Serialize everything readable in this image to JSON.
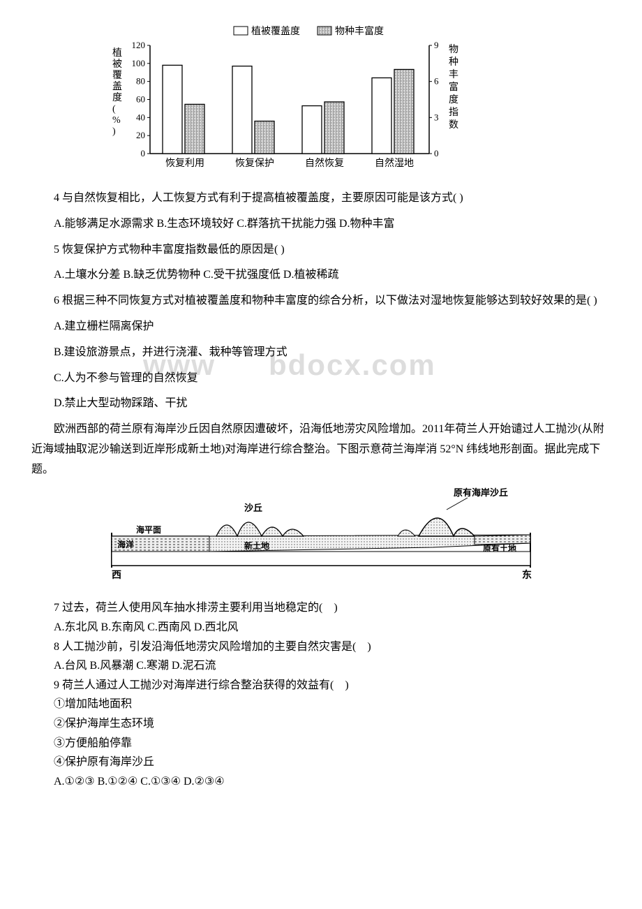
{
  "chart": {
    "type": "bar",
    "legend": [
      {
        "label": "植被覆盖度",
        "pattern": "empty"
      },
      {
        "label": "物种丰富度",
        "pattern": "hatched"
      }
    ],
    "y_left_label": "植被覆盖度(%)",
    "y_right_label": "物种丰富度指数",
    "y_left": {
      "min": 0,
      "max": 120,
      "ticks": [
        0,
        20,
        40,
        60,
        80,
        100,
        120
      ]
    },
    "y_right": {
      "min": 0,
      "max": 9,
      "ticks": [
        0,
        3,
        6,
        9
      ]
    },
    "categories": [
      "恢复利用",
      "恢复保护",
      "自然恢复",
      "自然湿地"
    ],
    "series": {
      "vegetation": [
        98,
        97,
        53,
        84
      ],
      "richness": [
        4.1,
        2.7,
        4.3,
        7.0
      ]
    },
    "bar_fill_empty": "#ffffff",
    "bar_fill_hatched_bg": "#d8d8d8",
    "bar_stroke": "#000000",
    "axis_color": "#000000",
    "background_color": "#ffffff",
    "font_size_axis": 13,
    "font_size_legend": 14
  },
  "q4": {
    "stem": "4 与自然恢复相比，人工恢复方式有利于提高植被覆盖度，主要原因可能是该方式( )",
    "options": "A.能够满足水源需求 B.生态环境较好 C.群落抗干扰能力强 D.物种丰富"
  },
  "q5": {
    "stem": "5 恢复保护方式物种丰富度指数最低的原因是( )",
    "options": "A.土壤水分差 B.缺乏优势物种 C.受干扰强度低 D.植被稀疏"
  },
  "q6": {
    "stem": "6 根据三种不同恢复方式对植被覆盖度和物种丰富度的综合分析，以下做法对湿地恢复能够达到较好效果的是( )",
    "optA": "A.建立栅栏隔离保护",
    "optB": "B.建设旅游景点，并进行浇灌、栽种等管理方式",
    "optC": "C.人为不参与管理的自然恢复",
    "optD": "D.禁止大型动物踩踏、干扰"
  },
  "watermark_text": "bdocx.com",
  "passage2": "欧洲西部的荷兰原有海岸沙丘因自然原因遭破坏，沿海低地涝灾风险增加。2011年荷兰人开始谴过人工抛沙(从附近海域抽取泥沙输送到近岸形成新土地)对海岸进行综合整治。下图示意荷兰海岸消 52°N 纬线地形剖面。据此完成下题。",
  "cross_section": {
    "labels": {
      "title_right": "原有海岸沙丘",
      "sha_qiu": "沙丘",
      "sea_level": "海平面",
      "sea": "海洋",
      "new_land": "新土地",
      "old_land": "原有土地",
      "west": "西",
      "east": "东"
    },
    "colors": {
      "sky": "#ffffff",
      "dune_fill": "#e8e8e8",
      "sea_fill": "#888888",
      "land_fill": "#d0d0d0",
      "outline": "#000000",
      "text": "#000000"
    }
  },
  "q7": {
    "stem": "7 过去，荷兰人使用风车抽水排涝主要利用当地稳定的(　)",
    "options": "A.东北风 B.东南风 C.西南风 D.西北风"
  },
  "q8": {
    "stem": "8 人工抛沙前，引发沿海低地涝灾风险增加的主要自然灾害是(　)",
    "options": "A.台风 B.风暴潮 C.寒潮 D.泥石流"
  },
  "q9": {
    "stem": "9 荷兰人通过人工抛沙对海岸进行综合整治获得的效益有(　)",
    "i1": "①增加陆地面积",
    "i2": "②保护海岸生态环境",
    "i3": "③方便船舶停靠",
    "i4": "④保护原有海岸沙丘",
    "options": "A.①②③ B.①②④ C.①③④ D.②③④"
  }
}
